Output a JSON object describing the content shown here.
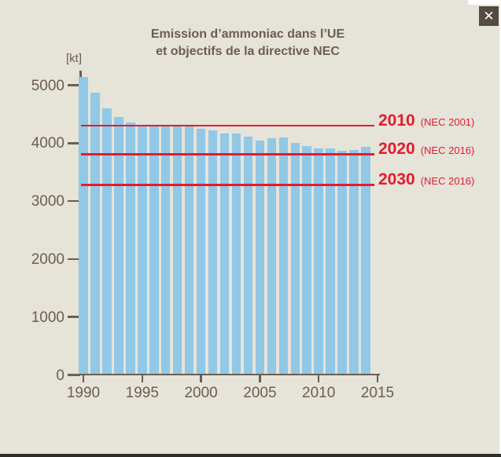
{
  "window": {
    "close_glyph": "✕"
  },
  "chart_data": {
    "type": "bar",
    "title_line1": "Emission d’ammoniac dans l’UE",
    "title_line2": "et objectifs de la directive NEC",
    "unit_label": "[kt]",
    "xlabel": "",
    "ylabel": "[kt]",
    "categories": [
      1990,
      1991,
      1992,
      1993,
      1994,
      1995,
      1996,
      1997,
      1998,
      1999,
      2000,
      2001,
      2002,
      2003,
      2004,
      2005,
      2006,
      2007,
      2008,
      2009,
      2010,
      2011,
      2012,
      2013,
      2014
    ],
    "values": [
      5140,
      4870,
      4600,
      4450,
      4350,
      4290,
      4290,
      4290,
      4290,
      4290,
      4250,
      4220,
      4170,
      4160,
      4110,
      4050,
      4080,
      4100,
      4000,
      3950,
      3910,
      3910,
      3870,
      3880,
      3930
    ],
    "x_ticks": [
      "1990",
      "1995",
      "2000",
      "2005",
      "2010",
      "2015"
    ],
    "y_ticks": [
      "0",
      "1000",
      "2000",
      "3000",
      "4000",
      "5000"
    ],
    "ylim": [
      0,
      5300
    ],
    "grid": false,
    "legend": false,
    "bar_color": "#91c8e6",
    "axis_color": "#6b5f50",
    "target_line_color": "#e41b2d",
    "target_lines": [
      {
        "year": "2010",
        "note": "(NEC 2001)",
        "value": 4300
      },
      {
        "year": "2020",
        "note": "(NEC 2016)",
        "value": 3810
      },
      {
        "year": "2030",
        "note": "(NEC 2016)",
        "value": 3280
      }
    ]
  }
}
